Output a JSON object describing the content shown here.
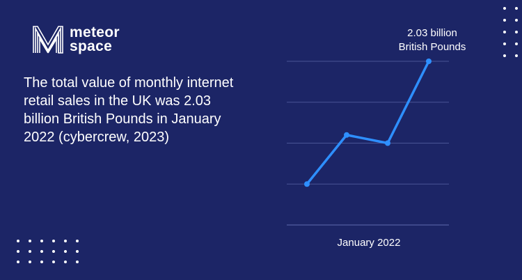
{
  "brand": {
    "line1": "meteor",
    "line2": "space",
    "logo_icon": "m-stripes-logo-icon"
  },
  "headline": "The total value of monthly internet retail sales in the UK was 2.03 billion British Pounds in January 2022 (cybercrew, 2023)",
  "colors": {
    "background": "#1c2566",
    "line": "#2e8fff",
    "grid": "#4a5596",
    "text": "#ffffff"
  },
  "chart_data": {
    "type": "line",
    "x": [
      1,
      2,
      3,
      4
    ],
    "values": [
      1.0,
      2.2,
      2.0,
      4.0
    ],
    "ylim": [
      0,
      4
    ],
    "grid": true,
    "xlabel": "January 2022",
    "ylabel": "",
    "title": "",
    "annotation": {
      "line1": "2.03 billion",
      "line2": "British Pounds"
    }
  }
}
